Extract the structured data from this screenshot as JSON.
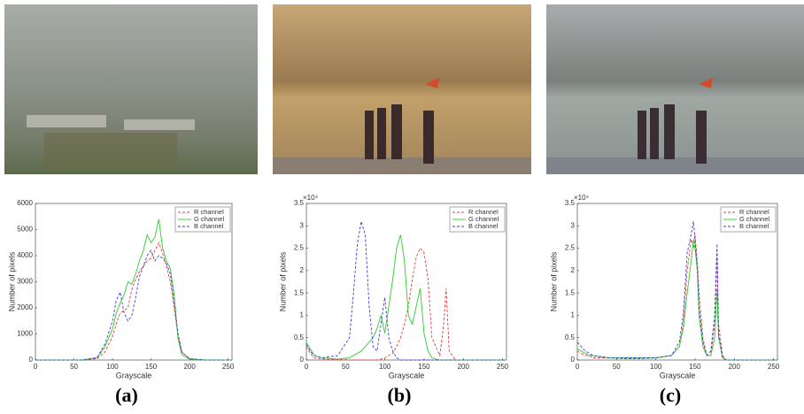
{
  "chart_data": [
    {
      "type": "line",
      "caption": "(a)",
      "x_label": "Grayscale",
      "y_label": "Number of pixels",
      "x": [
        0,
        40,
        60,
        80,
        90,
        100,
        105,
        110,
        115,
        120,
        125,
        130,
        135,
        140,
        145,
        150,
        155,
        160,
        165,
        170,
        175,
        180,
        185,
        190,
        200,
        220,
        255
      ],
      "series": [
        {
          "name": "R channel",
          "color": "#e8383d",
          "style": "dashed",
          "values": [
            0,
            0,
            0,
            50,
            300,
            900,
            1400,
            1800,
            1900,
            2000,
            2700,
            3100,
            3400,
            3600,
            3800,
            3900,
            4200,
            4500,
            4100,
            3600,
            3000,
            2000,
            900,
            300,
            50,
            0,
            0
          ]
        },
        {
          "name": "G channel",
          "color": "#2ecc2e",
          "style": "solid",
          "values": [
            0,
            0,
            0,
            80,
            500,
            1200,
            1800,
            2200,
            2500,
            3000,
            2900,
            3300,
            3800,
            4200,
            4800,
            4500,
            4700,
            5400,
            4300,
            3800,
            3500,
            2500,
            800,
            200,
            30,
            0,
            0
          ]
        },
        {
          "name": "B channel",
          "color": "#3b3bdc",
          "style": "dashed",
          "values": [
            0,
            0,
            0,
            100,
            600,
            1500,
            2300,
            2600,
            1800,
            1500,
            1700,
            2400,
            3200,
            3600,
            4000,
            4200,
            3800,
            4000,
            3900,
            3700,
            3300,
            2200,
            1000,
            300,
            50,
            0,
            0
          ]
        }
      ],
      "xlim": [
        0,
        255
      ],
      "xticks": [
        0,
        50,
        100,
        150,
        200,
        250
      ],
      "ylim": [
        0,
        6000
      ],
      "yticks": [
        0,
        1000,
        2000,
        3000,
        4000,
        5000,
        6000
      ]
    },
    {
      "type": "line",
      "caption": "(b)",
      "x_label": "Grayscale",
      "y_label": "Number of pixels",
      "y_multiplier": "×10⁴",
      "x": [
        0,
        5,
        10,
        20,
        40,
        55,
        60,
        65,
        70,
        75,
        80,
        85,
        90,
        95,
        100,
        105,
        110,
        115,
        120,
        125,
        130,
        135,
        140,
        145,
        150,
        155,
        160,
        170,
        175,
        178,
        182,
        190,
        255
      ],
      "series": [
        {
          "name": "R channel",
          "color": "#e8383d",
          "style": "dashed",
          "values": [
            0.3,
            0.15,
            0.05,
            0.02,
            0.01,
            0,
            0,
            0,
            0,
            0,
            0,
            0,
            0,
            0.02,
            0.05,
            0.1,
            0.15,
            0.3,
            0.5,
            0.8,
            1.2,
            1.8,
            2.3,
            2.5,
            2.4,
            1.8,
            0.5,
            0.1,
            0.8,
            1.6,
            0.2,
            0,
            0
          ]
        },
        {
          "name": "G channel",
          "color": "#2ecc2e",
          "style": "solid",
          "values": [
            0.4,
            0.25,
            0.1,
            0.05,
            0.02,
            0.05,
            0.1,
            0.15,
            0.2,
            0.3,
            0.4,
            0.5,
            0.7,
            1.0,
            0.6,
            1.2,
            1.8,
            2.5,
            2.8,
            2.2,
            1.0,
            0.8,
            1.2,
            1.6,
            0.6,
            0.2,
            0.05,
            0,
            0,
            0,
            0,
            0,
            0
          ]
        },
        {
          "name": "B channel",
          "color": "#3b3bdc",
          "style": "dashed",
          "values": [
            0.35,
            0.2,
            0.1,
            0.05,
            0.1,
            0.5,
            1.5,
            2.6,
            3.1,
            2.8,
            1.2,
            0.3,
            0.2,
            0.8,
            1.4,
            0.5,
            0.2,
            0.05,
            0,
            0,
            0,
            0,
            0,
            0,
            0,
            0,
            0,
            0,
            0,
            0,
            0,
            0,
            0
          ]
        }
      ],
      "xlim": [
        0,
        255
      ],
      "xticks": [
        0,
        50,
        100,
        150,
        200,
        250
      ],
      "ylim": [
        0,
        3.5
      ],
      "yticks": [
        0,
        0.5,
        1,
        1.5,
        2,
        2.5,
        3,
        3.5
      ]
    },
    {
      "type": "line",
      "caption": "(c)",
      "x_label": "Grayscale",
      "y_label": "Number of pixels",
      "y_multiplier": "×10⁴",
      "x": [
        0,
        5,
        10,
        15,
        20,
        40,
        60,
        80,
        100,
        120,
        130,
        135,
        140,
        145,
        148,
        150,
        153,
        155,
        160,
        165,
        170,
        175,
        178,
        180,
        185,
        190,
        255
      ],
      "series": [
        {
          "name": "R channel",
          "color": "#e8383d",
          "style": "dashed",
          "values": [
            0.2,
            0.15,
            0.1,
            0.1,
            0.05,
            0.05,
            0.03,
            0.03,
            0.05,
            0.1,
            0.3,
            0.8,
            2.0,
            2.7,
            2.5,
            2.8,
            2.2,
            1.5,
            0.5,
            0.1,
            0.1,
            0.8,
            2.3,
            0.8,
            0.1,
            0,
            0
          ]
        },
        {
          "name": "G channel",
          "color": "#2ecc2e",
          "style": "solid",
          "values": [
            0.25,
            0.2,
            0.15,
            0.1,
            0.1,
            0.05,
            0.05,
            0.05,
            0.05,
            0.1,
            0.3,
            0.7,
            1.5,
            2.2,
            2.7,
            2.5,
            2.0,
            1.0,
            0.3,
            0.1,
            0.1,
            0.5,
            1.6,
            0.5,
            0.05,
            0,
            0
          ]
        },
        {
          "name": "B channel",
          "color": "#3b3bdc",
          "style": "dashed",
          "values": [
            0.4,
            0.3,
            0.2,
            0.15,
            0.1,
            0.05,
            0.05,
            0.05,
            0.05,
            0.1,
            0.4,
            1.0,
            2.4,
            2.8,
            3.1,
            2.7,
            2.0,
            1.2,
            0.4,
            0.1,
            0.2,
            1.0,
            2.6,
            0.6,
            0.05,
            0,
            0
          ]
        }
      ],
      "xlim": [
        0,
        255
      ],
      "xticks": [
        0,
        50,
        100,
        150,
        200,
        250
      ],
      "ylim": [
        0,
        3.5
      ],
      "yticks": [
        0,
        0.5,
        1,
        1.5,
        2,
        2.5,
        3,
        3.5
      ]
    }
  ]
}
